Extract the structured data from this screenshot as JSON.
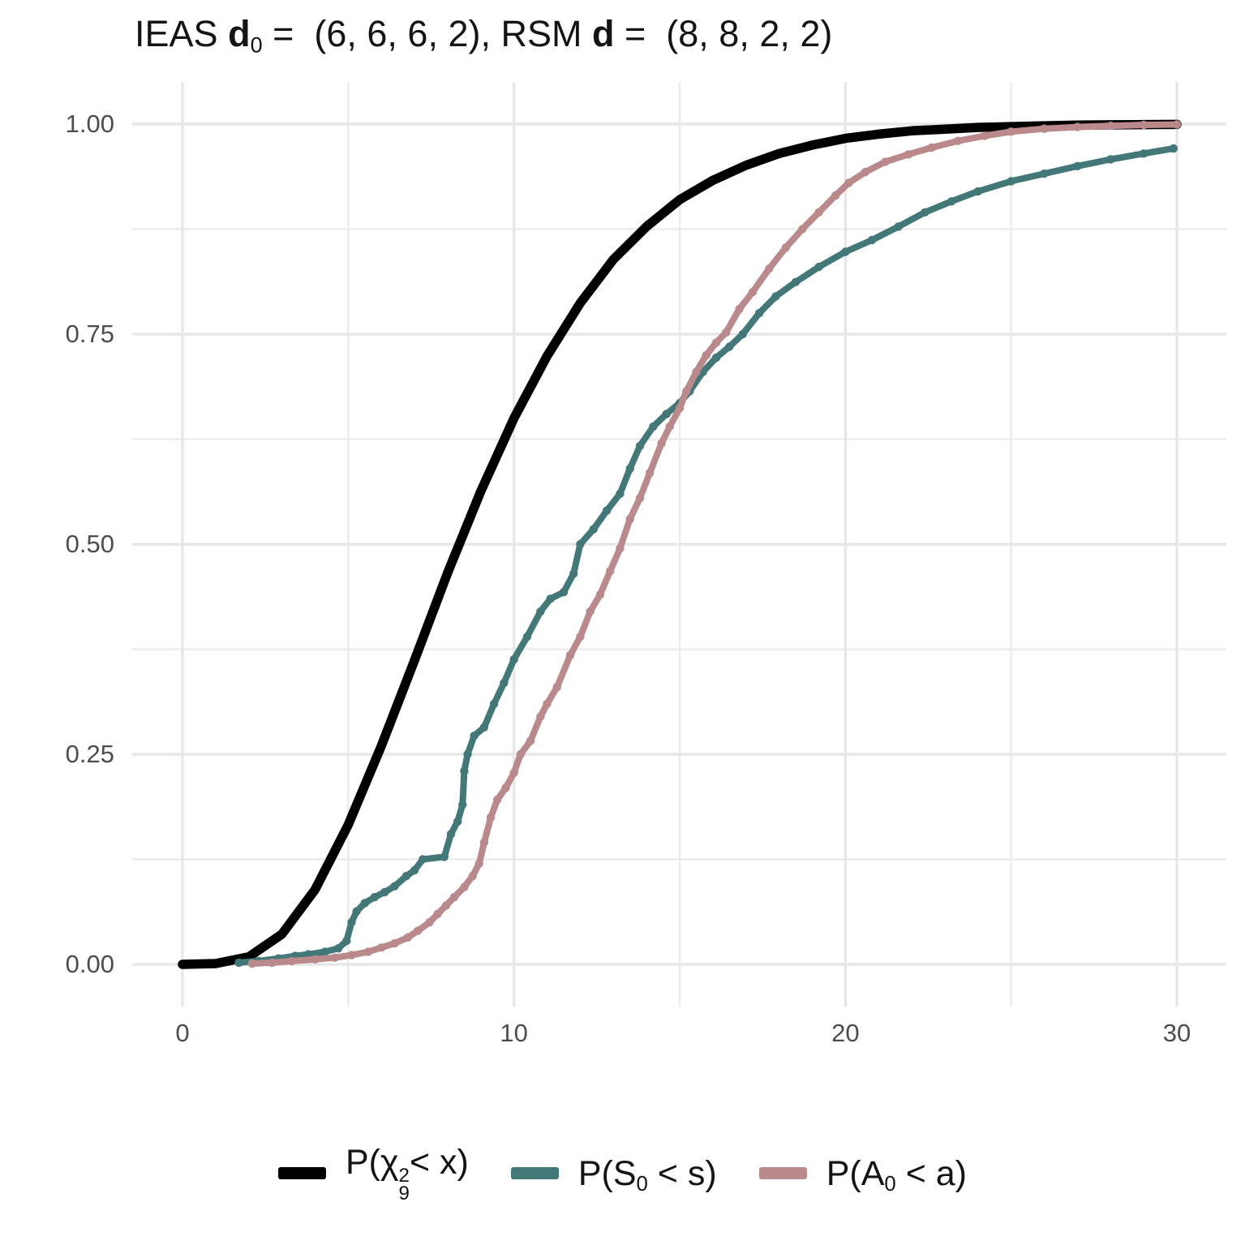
{
  "title": {
    "text": "IEAS d0 =  (6, 6, 6, 2), RSM d =  (8, 8, 2, 2)",
    "segments": [
      {
        "t": "IEAS "
      },
      {
        "t": "d",
        "b": true
      },
      {
        "t": "0",
        "sub": true
      },
      {
        "t": " =  (6, 6, 6, 2), RSM "
      },
      {
        "t": "d",
        "b": true
      },
      {
        "t": " =  (8, 8, 2, 2)"
      }
    ]
  },
  "axes": {
    "y": {
      "tick_labels": [
        "1.00",
        "0.75",
        "0.50",
        "0.25",
        "0.00"
      ],
      "tick_values": [
        1,
        0.75,
        0.5,
        0.25,
        0
      ]
    },
    "x": {
      "tick_labels": [
        "0",
        "10",
        "20",
        "30"
      ],
      "tick_values": [
        0,
        10,
        20,
        30
      ]
    }
  },
  "legend": {
    "position": "bottom",
    "items": [
      {
        "name": "chi-squared-cdf",
        "color": "#000000",
        "segments": [
          {
            "t": "P("
          },
          {
            "t": "χ"
          },
          {
            "stack": {
              "sup": "2",
              "sub": "9"
            }
          },
          {
            "t": "< x)"
          }
        ]
      },
      {
        "name": "S0-ecdf",
        "color": "#427978",
        "segments": [
          {
            "t": "P(S"
          },
          {
            "t": "0",
            "sub": true
          },
          {
            "t": " < s)"
          }
        ]
      },
      {
        "name": "A0-ecdf",
        "color": "#ba898c",
        "segments": [
          {
            "t": "P(A"
          },
          {
            "t": "0",
            "sub": true
          },
          {
            "t": " < a)"
          }
        ]
      }
    ]
  },
  "colors": {
    "background": "#ffffff",
    "grid_major": "#e7e7e7",
    "grid_minor": "#ebebeb",
    "tick_label": "#4d4d4d",
    "black_line": "#000000",
    "teal_line": "#427978",
    "pink_line": "#ba898c"
  },
  "chart_data": {
    "type": "line",
    "title": "IEAS d0 = (6, 6, 6, 2), RSM d = (8, 8, 2, 2)",
    "xlabel": "",
    "ylabel": "",
    "xlim": [
      -1.5,
      31.5
    ],
    "ylim": [
      -0.05,
      1.05
    ],
    "x_ticks": [
      0,
      10,
      20,
      30
    ],
    "x_minor_ticks": [
      5,
      15,
      25
    ],
    "y_ticks": [
      0,
      0.25,
      0.5,
      0.75,
      1.0
    ],
    "y_minor_ticks": [
      0.125,
      0.375,
      0.625,
      0.875
    ],
    "grid": "major+minor",
    "legend_position": "bottom",
    "series": [
      {
        "name": "P(χ²₉ < x)",
        "description": "chi-squared CDF, 9 degrees of freedom",
        "style": "smooth",
        "color": "#000000",
        "linewidth": 11.5,
        "points": [
          [
            0,
            0
          ],
          [
            1,
            0.001
          ],
          [
            2,
            0.009
          ],
          [
            3,
            0.036
          ],
          [
            4,
            0.089
          ],
          [
            5,
            0.166
          ],
          [
            6,
            0.26
          ],
          [
            7,
            0.362
          ],
          [
            8,
            0.466
          ],
          [
            9,
            0.563
          ],
          [
            10,
            0.65
          ],
          [
            11,
            0.724
          ],
          [
            12,
            0.787
          ],
          [
            13,
            0.839
          ],
          [
            14,
            0.878
          ],
          [
            15,
            0.91
          ],
          [
            16,
            0.933
          ],
          [
            17,
            0.951
          ],
          [
            18,
            0.965
          ],
          [
            19,
            0.975
          ],
          [
            20,
            0.983
          ],
          [
            21,
            0.988
          ],
          [
            22,
            0.992
          ],
          [
            23,
            0.994
          ],
          [
            24,
            0.996
          ],
          [
            25,
            0.997
          ],
          [
            26,
            0.998
          ],
          [
            27,
            0.9987
          ],
          [
            28,
            0.9991
          ],
          [
            29,
            0.9994
          ],
          [
            30,
            0.9996
          ]
        ]
      },
      {
        "name": "P(S₀ < s)",
        "description": "empirical CDF of S0",
        "style": "ecdf-dots",
        "color": "#427978",
        "linewidth": 8,
        "points": [
          [
            1.7,
            0.002
          ],
          [
            2.3,
            0.004
          ],
          [
            2.9,
            0.007
          ],
          [
            3.4,
            0.01
          ],
          [
            3.8,
            0.012
          ],
          [
            4.3,
            0.015
          ],
          [
            4.7,
            0.019
          ],
          [
            4.95,
            0.028
          ],
          [
            5.1,
            0.05
          ],
          [
            5.25,
            0.063
          ],
          [
            5.5,
            0.073
          ],
          [
            5.8,
            0.08
          ],
          [
            6.1,
            0.086
          ],
          [
            6.4,
            0.093
          ],
          [
            6.75,
            0.105
          ],
          [
            7.0,
            0.112
          ],
          [
            7.25,
            0.125
          ],
          [
            7.9,
            0.128
          ],
          [
            8.1,
            0.155
          ],
          [
            8.3,
            0.17
          ],
          [
            8.45,
            0.19
          ],
          [
            8.5,
            0.23
          ],
          [
            8.6,
            0.25
          ],
          [
            8.8,
            0.272
          ],
          [
            9.1,
            0.282
          ],
          [
            9.4,
            0.31
          ],
          [
            9.7,
            0.335
          ],
          [
            10.0,
            0.363
          ],
          [
            10.4,
            0.39
          ],
          [
            10.8,
            0.42
          ],
          [
            11.1,
            0.435
          ],
          [
            11.5,
            0.443
          ],
          [
            11.8,
            0.465
          ],
          [
            12.0,
            0.5
          ],
          [
            12.4,
            0.518
          ],
          [
            12.8,
            0.54
          ],
          [
            13.2,
            0.56
          ],
          [
            13.5,
            0.59
          ],
          [
            13.8,
            0.617
          ],
          [
            14.2,
            0.64
          ],
          [
            14.6,
            0.655
          ],
          [
            15.0,
            0.668
          ],
          [
            15.3,
            0.682
          ],
          [
            15.7,
            0.705
          ],
          [
            16.1,
            0.722
          ],
          [
            16.5,
            0.735
          ],
          [
            16.9,
            0.75
          ],
          [
            17.4,
            0.775
          ],
          [
            17.9,
            0.795
          ],
          [
            18.5,
            0.812
          ],
          [
            19.2,
            0.83
          ],
          [
            20.0,
            0.848
          ],
          [
            20.8,
            0.862
          ],
          [
            21.6,
            0.878
          ],
          [
            22.4,
            0.895
          ],
          [
            23.2,
            0.908
          ],
          [
            24.0,
            0.92
          ],
          [
            25.0,
            0.932
          ],
          [
            26.0,
            0.941
          ],
          [
            27.0,
            0.95
          ],
          [
            28.0,
            0.958
          ],
          [
            29.0,
            0.965
          ],
          [
            29.9,
            0.971
          ]
        ]
      },
      {
        "name": "P(A₀ < a)",
        "description": "empirical CDF of A0",
        "style": "ecdf-dots",
        "color": "#ba898c",
        "linewidth": 8,
        "points": [
          [
            2.1,
            0.001
          ],
          [
            2.7,
            0.002
          ],
          [
            3.3,
            0.004
          ],
          [
            4.0,
            0.006
          ],
          [
            4.6,
            0.008
          ],
          [
            5.1,
            0.011
          ],
          [
            5.6,
            0.015
          ],
          [
            6.0,
            0.02
          ],
          [
            6.4,
            0.025
          ],
          [
            6.8,
            0.032
          ],
          [
            7.1,
            0.04
          ],
          [
            7.45,
            0.05
          ],
          [
            7.7,
            0.06
          ],
          [
            7.95,
            0.07
          ],
          [
            8.2,
            0.08
          ],
          [
            8.5,
            0.092
          ],
          [
            8.75,
            0.105
          ],
          [
            8.95,
            0.12
          ],
          [
            9.1,
            0.145
          ],
          [
            9.3,
            0.175
          ],
          [
            9.5,
            0.196
          ],
          [
            9.75,
            0.21
          ],
          [
            10.0,
            0.228
          ],
          [
            10.2,
            0.25
          ],
          [
            10.5,
            0.266
          ],
          [
            10.8,
            0.295
          ],
          [
            11.0,
            0.31
          ],
          [
            11.3,
            0.33
          ],
          [
            11.7,
            0.368
          ],
          [
            12.0,
            0.39
          ],
          [
            12.3,
            0.42
          ],
          [
            12.6,
            0.44
          ],
          [
            12.9,
            0.468
          ],
          [
            13.2,
            0.495
          ],
          [
            13.5,
            0.53
          ],
          [
            13.8,
            0.555
          ],
          [
            14.1,
            0.585
          ],
          [
            14.45,
            0.62
          ],
          [
            14.7,
            0.64
          ],
          [
            15.0,
            0.662
          ],
          [
            15.2,
            0.682
          ],
          [
            15.5,
            0.705
          ],
          [
            15.8,
            0.725
          ],
          [
            16.1,
            0.74
          ],
          [
            16.4,
            0.752
          ],
          [
            16.8,
            0.78
          ],
          [
            17.2,
            0.8
          ],
          [
            17.7,
            0.828
          ],
          [
            18.2,
            0.853
          ],
          [
            18.7,
            0.875
          ],
          [
            19.2,
            0.895
          ],
          [
            19.7,
            0.915
          ],
          [
            20.1,
            0.93
          ],
          [
            20.6,
            0.943
          ],
          [
            21.2,
            0.955
          ],
          [
            21.9,
            0.964
          ],
          [
            22.6,
            0.972
          ],
          [
            23.4,
            0.98
          ],
          [
            24.2,
            0.986
          ],
          [
            25.0,
            0.991
          ],
          [
            26.0,
            0.9945
          ],
          [
            27.0,
            0.9965
          ],
          [
            28.0,
            0.998
          ],
          [
            29.0,
            0.999
          ],
          [
            30.0,
            0.9995
          ]
        ]
      }
    ]
  }
}
